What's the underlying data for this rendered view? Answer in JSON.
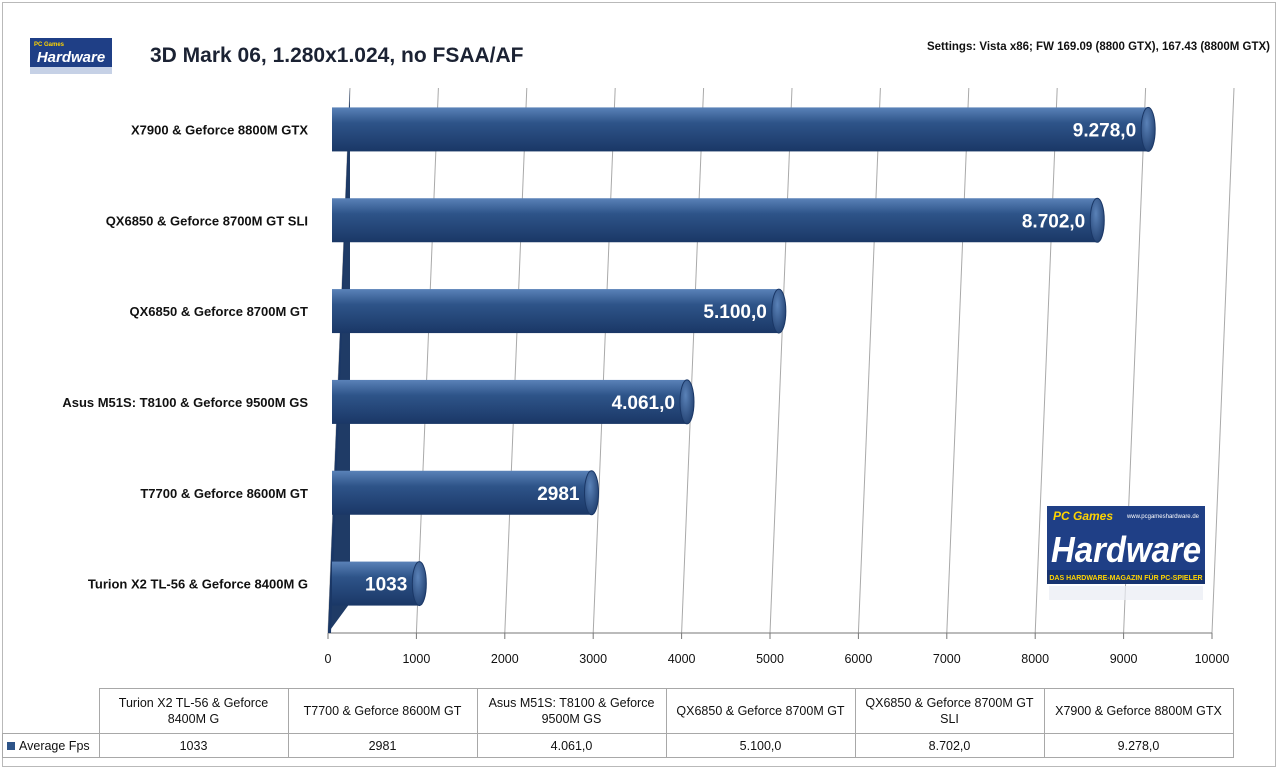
{
  "header": {
    "title": "3D Mark 06, 1.280x1.024, no FSAA/AF",
    "settings": "Settings: Vista x86; FW 169.09 (8800 GTX), 167.43 (8800M GTX)"
  },
  "logo_small": {
    "word": "Hardware",
    "top": "PC Games"
  },
  "logo_big": {
    "top": "PC Games",
    "url": "www.pcgameshardware.de",
    "word": "Hardware",
    "tagline": "DAS HARDWARE-MAGAZIN FÜR PC-SPIELER"
  },
  "colors": {
    "bar": "#2e5489",
    "bar_dark": "#1a3766",
    "bar_light": "#5a82b8",
    "wall": "#1f3b66"
  },
  "chart_data": {
    "type": "bar",
    "orientation": "horizontal",
    "categories": [
      "Turion X2  TL-56  & Geforce 8400M  G",
      "T7700  & Geforce 8600M  GT",
      "Asus M51S:  T8100  & Geforce 9500M  GS",
      "QX6850  & Geforce 8700M  GT",
      "QX6850  & Geforce 8700M  GT SLI",
      "X7900  & Geforce 8800M  GTX"
    ],
    "values": [
      1033,
      2981,
      4061,
      5100,
      8702,
      9278
    ],
    "value_labels": [
      "1033",
      "2981",
      "4.061,0",
      "5.100,0",
      "8.702,0",
      "9.278,0"
    ],
    "xlim": [
      0,
      10000
    ],
    "ticks": [
      "0",
      "1000",
      "2000",
      "3000",
      "4000",
      "5000",
      "6000",
      "7000",
      "8000",
      "9000",
      "10000"
    ],
    "grid": true,
    "series_name": "Average Fps"
  },
  "table": {
    "headers": [
      "Turion X2 TL-56 & Geforce 8400M G",
      "T7700 & Geforce 8600M GT",
      "Asus M51S: T8100 & Geforce 9500M GS",
      "QX6850 & Geforce 8700M GT",
      "QX6850 & Geforce 8700M GT SLI",
      "X7900 & Geforce 8800M GTX"
    ],
    "row_label": "Average Fps",
    "values": [
      "1033",
      "2981",
      "4.061,0",
      "5.100,0",
      "8.702,0",
      "9.278,0"
    ]
  }
}
